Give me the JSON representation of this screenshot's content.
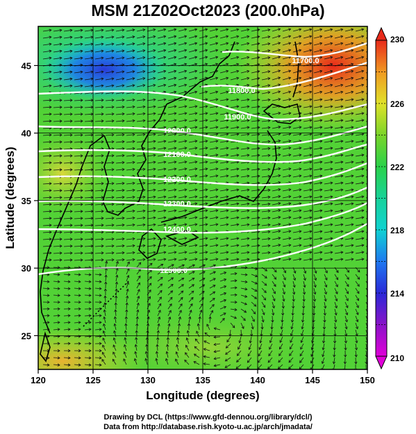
{
  "title": "MSM 21Z02Oct2023 (200.0hPa)",
  "x_axis": {
    "label": "Longitude (degrees)",
    "range": [
      120,
      150
    ],
    "ticks": [
      120,
      125,
      130,
      135,
      140,
      145,
      150
    ]
  },
  "y_axis": {
    "label": "Latitude  (degrees)",
    "range": [
      22.5,
      47.9
    ],
    "ticks": [
      25,
      30,
      35,
      40,
      45
    ]
  },
  "colorbar": {
    "range": [
      210,
      230
    ],
    "tick_labels": [
      "230",
      "226",
      "222",
      "218",
      "214",
      "210"
    ],
    "tick_values": [
      230,
      226,
      222,
      218,
      214,
      210
    ],
    "stops": [
      {
        "value": 210,
        "color": "#e000d8"
      },
      {
        "value": 212,
        "color": "#8a14c8"
      },
      {
        "value": 214,
        "color": "#2a28d8"
      },
      {
        "value": 216,
        "color": "#1e78f0"
      },
      {
        "value": 218,
        "color": "#10d2d2"
      },
      {
        "value": 220,
        "color": "#18d29a"
      },
      {
        "value": 222,
        "color": "#2ad24a"
      },
      {
        "value": 224,
        "color": "#7ad42a"
      },
      {
        "value": 226,
        "color": "#e0e22a"
      },
      {
        "value": 228,
        "color": "#f09a22"
      },
      {
        "value": 230,
        "color": "#e82a1a"
      }
    ]
  },
  "contours": [
    {
      "label": "11700.0",
      "value": 11700
    },
    {
      "label": "11800.0",
      "value": 11800
    },
    {
      "label": "11900.0",
      "value": 11900
    },
    {
      "label": "12000.0",
      "value": 12000
    },
    {
      "label": "12100.0",
      "value": 12100
    },
    {
      "label": "12200.0",
      "value": 12200
    },
    {
      "label": "12300.0",
      "value": 12300
    },
    {
      "label": "12400.0",
      "value": 12400
    },
    {
      "label": "12500.0",
      "value": 12500
    }
  ],
  "credits": {
    "line1": "Drawing by DCL (https://www.gfd-dennou.org/library/dcl/)",
    "line2": "Data from http://database.rish.kyoto-u.ac.jp/arch/jmadata/"
  }
}
